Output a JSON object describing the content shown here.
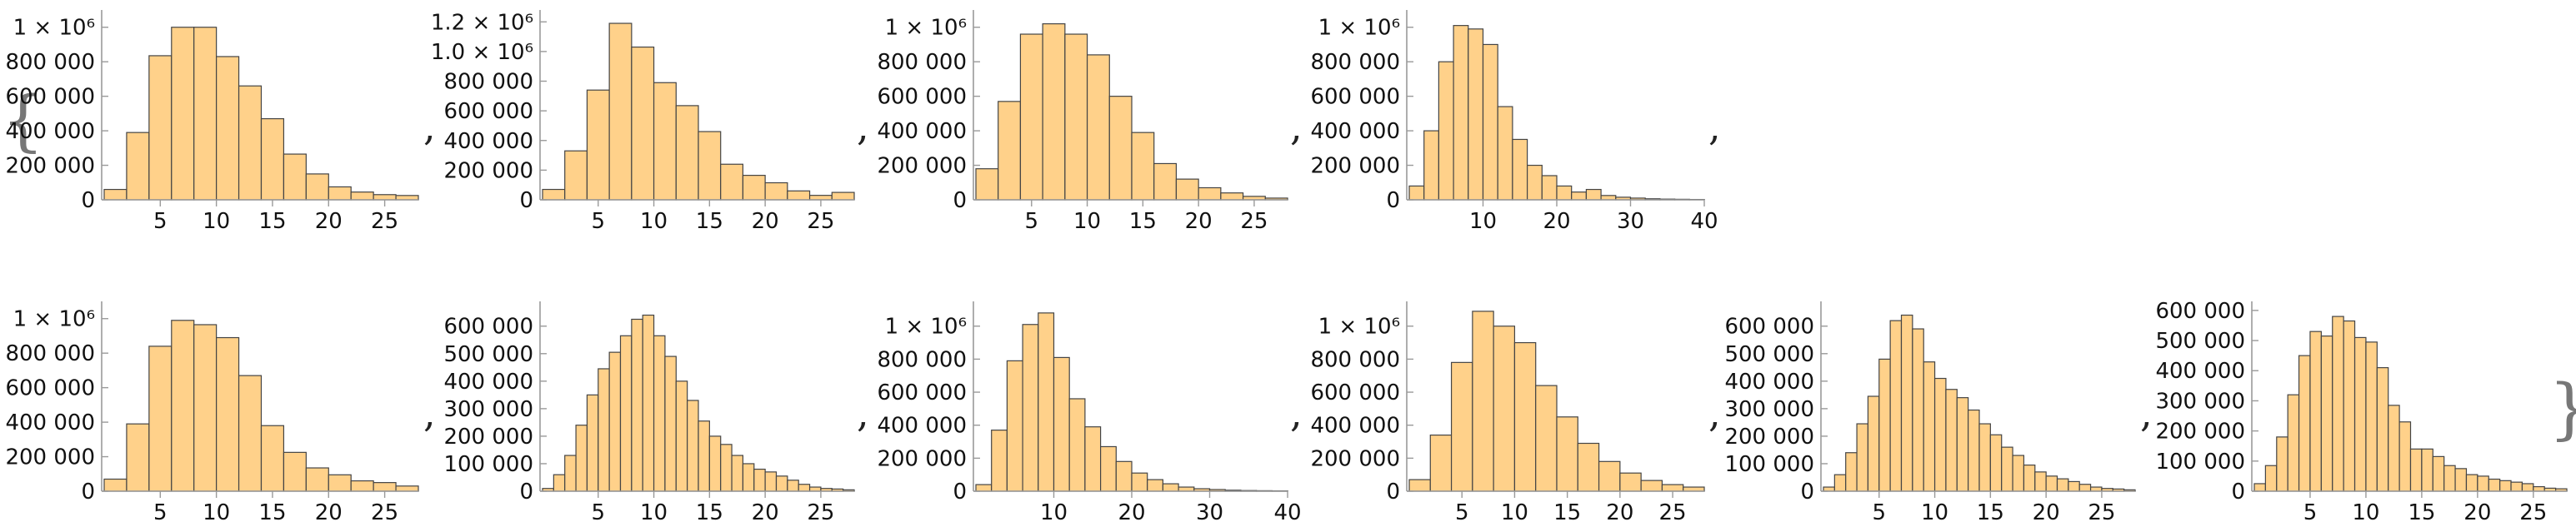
{
  "colors": {
    "bar_fill": "#ffd18a",
    "bar_stroke": "#444444",
    "axis": "#9a9a9a",
    "text": "#111111"
  },
  "open_brace": "{",
  "close_brace": "}",
  "separator": ",",
  "chart_data": [
    {
      "type": "bar",
      "bin_start": 0,
      "bin_width": 2,
      "values": [
        60000,
        390000,
        835000,
        1000000,
        1000000,
        830000,
        660000,
        470000,
        265000,
        150000,
        75000,
        45000,
        30000,
        25000
      ],
      "ylim": [
        0,
        1100000
      ],
      "xticks": [
        5,
        10,
        15,
        20,
        25
      ],
      "xtick_labels": [
        "5",
        "10",
        "15",
        "20",
        "25"
      ],
      "yticks": [
        0,
        200000,
        400000,
        600000,
        800000,
        1000000
      ],
      "ytick_labels": [
        "0",
        "200 000",
        "400 000",
        "600 000",
        "800 000",
        "1 × 10⁶"
      ]
    },
    {
      "type": "bar",
      "bin_start": 0,
      "bin_width": 2,
      "values": [
        70000,
        330000,
        740000,
        1190000,
        1030000,
        790000,
        635000,
        460000,
        240000,
        165000,
        115000,
        60000,
        30000,
        50000
      ],
      "ylim": [
        0,
        1280000
      ],
      "xticks": [
        5,
        10,
        15,
        20,
        25
      ],
      "xtick_labels": [
        "5",
        "10",
        "15",
        "20",
        "25"
      ],
      "yticks": [
        0,
        200000,
        400000,
        600000,
        800000,
        1000000,
        1200000
      ],
      "ytick_labels": [
        "0",
        "200 000",
        "400 000",
        "600 000",
        "800 000",
        "1.0 × 10⁶",
        "1.2 × 10⁶"
      ]
    },
    {
      "type": "bar",
      "bin_start": 0,
      "bin_width": 2,
      "values": [
        180000,
        570000,
        960000,
        1020000,
        960000,
        840000,
        600000,
        390000,
        210000,
        120000,
        70000,
        40000,
        20000,
        10000
      ],
      "ylim": [
        0,
        1100000
      ],
      "xticks": [
        5,
        10,
        15,
        20,
        25
      ],
      "xtick_labels": [
        "5",
        "10",
        "15",
        "20",
        "25"
      ],
      "yticks": [
        0,
        200000,
        400000,
        600000,
        800000,
        1000000
      ],
      "ytick_labels": [
        "0",
        "200 000",
        "400 000",
        "600 000",
        "800 000",
        "1 × 10⁶"
      ]
    },
    {
      "type": "bar",
      "bin_start": 0,
      "bin_width": 2,
      "values": [
        80000,
        400000,
        800000,
        1010000,
        990000,
        900000,
        540000,
        350000,
        200000,
        140000,
        80000,
        45000,
        60000,
        25000,
        15000,
        10000,
        6000,
        4000,
        3000,
        2000
      ],
      "ylim": [
        0,
        1100000
      ],
      "xticks": [
        10,
        20,
        30,
        40
      ],
      "xtick_labels": [
        "10",
        "20",
        "30",
        "40"
      ],
      "yticks": [
        0,
        200000,
        400000,
        600000,
        800000,
        1000000
      ],
      "ytick_labels": [
        "0",
        "200 000",
        "400 000",
        "600 000",
        "800 000",
        "1 × 10⁶"
      ]
    },
    {
      "type": "bar",
      "bin_start": 0,
      "bin_width": 2,
      "values": [
        70000,
        390000,
        840000,
        990000,
        965000,
        890000,
        670000,
        380000,
        225000,
        135000,
        95000,
        60000,
        50000,
        30000
      ],
      "ylim": [
        0,
        1100000
      ],
      "xticks": [
        5,
        10,
        15,
        20,
        25
      ],
      "xtick_labels": [
        "5",
        "10",
        "15",
        "20",
        "25"
      ],
      "yticks": [
        0,
        200000,
        400000,
        600000,
        800000,
        1000000
      ],
      "ytick_labels": [
        "0",
        "200 000",
        "400 000",
        "600 000",
        "800 000",
        "1 × 10⁶"
      ]
    },
    {
      "type": "bar",
      "bin_start": 0,
      "bin_width": 1,
      "values": [
        10000,
        60000,
        130000,
        240000,
        350000,
        445000,
        505000,
        565000,
        625000,
        640000,
        565000,
        490000,
        400000,
        330000,
        255000,
        200000,
        170000,
        130000,
        100000,
        80000,
        70000,
        55000,
        40000,
        25000,
        15000,
        10000,
        8000,
        5000
      ],
      "ylim": [
        0,
        690000
      ],
      "xticks": [
        5,
        10,
        15,
        20,
        25
      ],
      "xtick_labels": [
        "5",
        "10",
        "15",
        "20",
        "25"
      ],
      "yticks": [
        0,
        100000,
        200000,
        300000,
        400000,
        500000,
        600000
      ],
      "ytick_labels": [
        "0",
        "100 000",
        "200 000",
        "300 000",
        "400 000",
        "500 000",
        "600 000"
      ]
    },
    {
      "type": "bar",
      "bin_start": 0,
      "bin_width": 2,
      "values": [
        40000,
        370000,
        790000,
        1010000,
        1080000,
        810000,
        560000,
        390000,
        270000,
        180000,
        110000,
        70000,
        45000,
        25000,
        15000,
        10000,
        6000,
        4000,
        3000,
        2000
      ],
      "ylim": [
        0,
        1150000
      ],
      "xticks": [
        10,
        20,
        30,
        40
      ],
      "xtick_labels": [
        "10",
        "20",
        "30",
        "40"
      ],
      "yticks": [
        0,
        200000,
        400000,
        600000,
        800000,
        1000000
      ],
      "ytick_labels": [
        "0",
        "200 000",
        "400 000",
        "600 000",
        "800 000",
        "1 × 10⁶"
      ]
    },
    {
      "type": "bar",
      "bin_start": 0,
      "bin_width": 2,
      "values": [
        70000,
        340000,
        780000,
        1090000,
        1000000,
        900000,
        640000,
        450000,
        290000,
        180000,
        110000,
        65000,
        40000,
        25000
      ],
      "ylim": [
        0,
        1150000
      ],
      "xticks": [
        5,
        10,
        15,
        20,
        25
      ],
      "xtick_labels": [
        "5",
        "10",
        "15",
        "20",
        "25"
      ],
      "yticks": [
        0,
        200000,
        400000,
        600000,
        800000,
        1000000
      ],
      "ytick_labels": [
        "0",
        "200 000",
        "400 000",
        "600 000",
        "800 000",
        "1 × 10⁶"
      ]
    },
    {
      "type": "bar",
      "bin_start": 0,
      "bin_width": 1,
      "values": [
        15000,
        60000,
        140000,
        245000,
        345000,
        480000,
        620000,
        640000,
        590000,
        470000,
        410000,
        370000,
        340000,
        295000,
        245000,
        205000,
        160000,
        130000,
        95000,
        70000,
        55000,
        45000,
        35000,
        25000,
        15000,
        10000,
        8000,
        5000
      ],
      "ylim": [
        0,
        690000
      ],
      "xticks": [
        5,
        10,
        15,
        20,
        25
      ],
      "xtick_labels": [
        "5",
        "10",
        "15",
        "20",
        "25"
      ],
      "yticks": [
        0,
        100000,
        200000,
        300000,
        400000,
        500000,
        600000
      ],
      "ytick_labels": [
        "0",
        "100 000",
        "200 000",
        "300 000",
        "400 000",
        "500 000",
        "600 000"
      ]
    },
    {
      "type": "bar",
      "bin_start": 0,
      "bin_width": 1,
      "values": [
        25000,
        85000,
        180000,
        320000,
        450000,
        530000,
        515000,
        580000,
        565000,
        510000,
        495000,
        410000,
        285000,
        230000,
        140000,
        140000,
        115000,
        85000,
        75000,
        55000,
        50000,
        40000,
        35000,
        30000,
        25000,
        15000,
        10000,
        8000
      ],
      "ylim": [
        0,
        630000
      ],
      "xticks": [
        5,
        10,
        15,
        20,
        25
      ],
      "xtick_labels": [
        "5",
        "10",
        "15",
        "20",
        "25"
      ],
      "yticks": [
        0,
        100000,
        200000,
        300000,
        400000,
        500000,
        600000
      ],
      "ytick_labels": [
        "0",
        "100 000",
        "200 000",
        "300 000",
        "400 000",
        "500 000",
        "600 000"
      ]
    }
  ]
}
